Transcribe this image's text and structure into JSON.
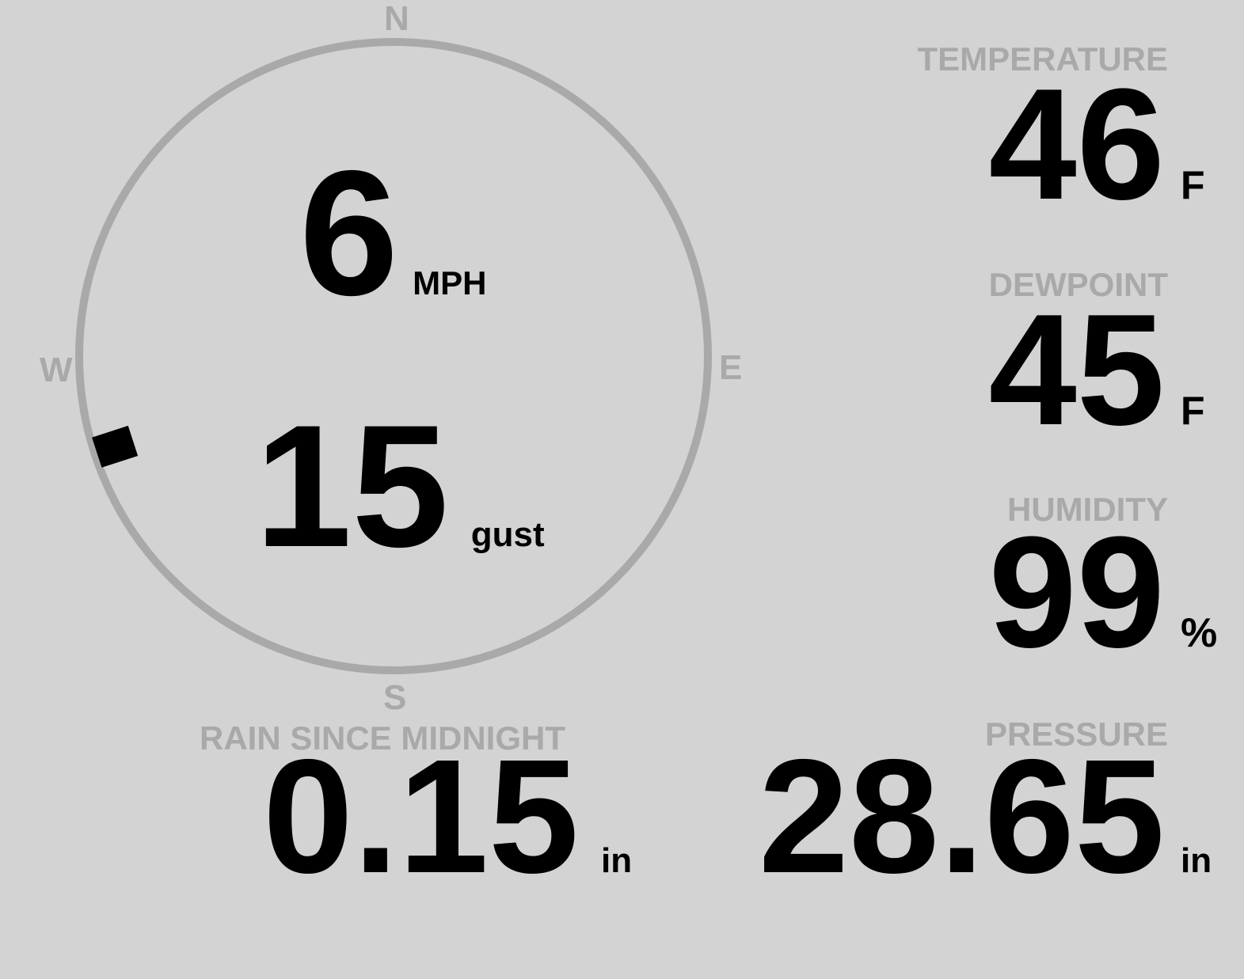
{
  "wind": {
    "speed": "6",
    "speed_unit": "MPH",
    "gust": "15",
    "gust_unit": "gust",
    "direction_degrees": 252,
    "cardinals": {
      "n": "N",
      "e": "E",
      "s": "S",
      "w": "W"
    }
  },
  "rain": {
    "label": "RAIN SINCE MIDNIGHT",
    "value": "0.15",
    "unit": "in"
  },
  "temperature": {
    "label": "TEMPERATURE",
    "value": "46",
    "unit": "F"
  },
  "dewpoint": {
    "label": "DEWPOINT",
    "value": "45",
    "unit": "F"
  },
  "humidity": {
    "label": "HUMIDITY",
    "value": "99",
    "unit": "%"
  },
  "pressure": {
    "label": "PRESSURE",
    "value": "28.65",
    "unit": "in"
  },
  "colors": {
    "background": "#d3d3d3",
    "label": "#a9a9a9",
    "value": "#000000"
  }
}
